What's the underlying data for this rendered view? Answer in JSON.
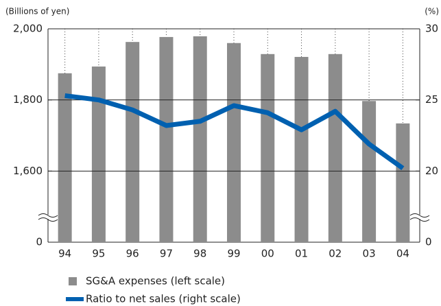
{
  "chart_data": {
    "type": "bar_line",
    "y_label": "(Billions of yen)",
    "y2_label": "(%)",
    "categories": [
      "94",
      "95",
      "96",
      "97",
      "98",
      "99",
      "00",
      "01",
      "02",
      "03",
      "04"
    ],
    "series": [
      {
        "name": "SG&A expenses (left scale)",
        "type": "bar",
        "color": "#8c8c8c",
        "values": [
          1875,
          1894,
          1963,
          1977,
          1979,
          1960,
          1929,
          1921,
          1929,
          1797,
          1734
        ]
      },
      {
        "name": "Ratio to net sales (right scale)",
        "type": "line",
        "axis": "y2",
        "color": "#0060b0",
        "values": [
          25.3,
          25.0,
          24.3,
          23.2,
          23.5,
          24.6,
          24.1,
          22.9,
          24.2,
          21.9,
          20.2
        ]
      }
    ],
    "ylim": [
      0,
      2000
    ],
    "y_break": [
      0,
      1400
    ],
    "yticks": [
      0,
      {
        "value": 1600,
        "label": "1,600"
      },
      {
        "value": 1800,
        "label": "1,800"
      },
      {
        "value": 2000,
        "label": "2,000"
      }
    ],
    "y2lim": [
      0,
      30
    ],
    "y2_break": [
      0,
      15
    ],
    "y2ticks": [
      0,
      20,
      25,
      30
    ],
    "grid": true
  }
}
